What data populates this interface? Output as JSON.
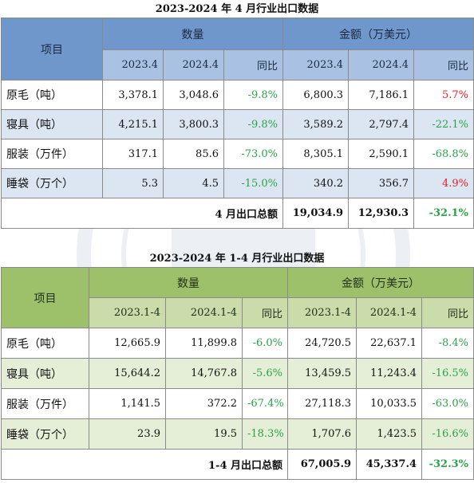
{
  "table1": {
    "title": "2023-2024 年 4 月行业出口数据",
    "item_header": "项目",
    "qty_header": "数量",
    "amount_header": "金额（万美元）",
    "sub_headers": [
      "2023.4",
      "2024.4",
      "同比",
      "2023.4",
      "2024.4",
      "同比"
    ],
    "rows": [
      {
        "name": "原毛（吨）",
        "q1": "3,378.1",
        "q2": "3,048.6",
        "qy": "-9.8%",
        "a1": "6,800.3",
        "a2": "7,186.1",
        "ay": "5.7%"
      },
      {
        "name": "寝具（吨）",
        "q1": "4,215.1",
        "q2": "3,800.3",
        "qy": "-9.8%",
        "a1": "3,589.2",
        "a2": "2,797.4",
        "ay": "-22.1%"
      },
      {
        "name": "服装（万件）",
        "q1": "317.1",
        "q2": "85.6",
        "qy": "-73.0%",
        "a1": "8,305.1",
        "a2": "2,590.1",
        "ay": "-68.8%"
      },
      {
        "name": "睡袋（万个）",
        "q1": "5.3",
        "q2": "4.5",
        "qy": "-15.0%",
        "a1": "340.2",
        "a2": "356.7",
        "ay": "4.9%"
      }
    ],
    "total_label": "4 月出口总额",
    "total_a1": "19,034.9",
    "total_a2": "12,930.3",
    "total_yoy": "-32.1%"
  },
  "table2": {
    "title": "2023-2024 年 1-4 月行业出口数据",
    "item_header": "项目",
    "qty_header": "数量",
    "amount_header": "金额（万美元）",
    "sub_headers": [
      "2023.1-4",
      "2024.1-4",
      "同比",
      "2023.1-4",
      "2024.1-4",
      "同比"
    ],
    "rows": [
      {
        "name": "原毛（吨）",
        "q1": "12,665.9",
        "q2": "11,899.8",
        "qy": "-6.0%",
        "a1": "24,720.5",
        "a2": "22,637.1",
        "ay": "-8.4%"
      },
      {
        "name": "寝具（吨）",
        "q1": "15,644.2",
        "q2": "14,767.8",
        "qy": "-5.6%",
        "a1": "13,459.5",
        "a2": "11,243.4",
        "ay": "-16.5%"
      },
      {
        "name": "服装（万件）",
        "q1": "1,141.5",
        "q2": "372.2",
        "qy": "-67.4%",
        "a1": "27,118.3",
        "a2": "10,033.5",
        "ay": "-63.0%"
      },
      {
        "name": "睡袋（万个）",
        "q1": "23.9",
        "q2": "19.5",
        "qy": "-18.3%",
        "a1": "1,707.6",
        "a2": "1,423.5",
        "ay": "-16.6%"
      }
    ],
    "total_label": "1-4 月出口总额",
    "total_a1": "67,005.9",
    "total_a2": "45,337.4",
    "total_yoy": "-32.3%"
  },
  "colors": {
    "negative": "#2aa34a",
    "positive": "#e0202a",
    "blue_header": "#6f97cc",
    "green_header": "#9dc06a"
  }
}
